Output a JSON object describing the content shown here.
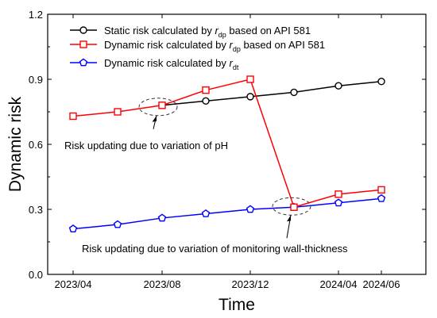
{
  "chart_data": {
    "type": "line",
    "xlabel": "Time",
    "ylabel": "Dynamic risk",
    "x_tick_labels": [
      "2023/04",
      "2023/08",
      "2023/12",
      "2024/04",
      "2024/06"
    ],
    "x_tick_indices": [
      0,
      2,
      4,
      6,
      7
    ],
    "y_ticks": [
      "0.0",
      "0.3",
      "0.6",
      "0.9",
      "1.2"
    ],
    "ylim": [
      0,
      1.2
    ],
    "grid": false,
    "legend_position": "top-left",
    "x": [
      "2023/04",
      "2023/06",
      "2023/08",
      "2023/10",
      "2023/12",
      "2024/02",
      "2024/04",
      "2024/06"
    ],
    "series": [
      {
        "name_prefix": "Static risk calculated by ",
        "name_symbol": "r",
        "name_subscript": "dp",
        "name_suffix": " based on API 581",
        "color": "#000000",
        "marker": "circle",
        "x": [
          "2023/08",
          "2023/10",
          "2023/12",
          "2024/02",
          "2024/04",
          "2024/06"
        ],
        "values": [
          0.78,
          0.8,
          0.82,
          0.84,
          0.87,
          0.89
        ]
      },
      {
        "name_prefix": "Dynamic risk calculated by ",
        "name_symbol": "r",
        "name_subscript": "dp",
        "name_suffix": " based on API 581",
        "color": "#ff0000",
        "marker": "square",
        "x": [
          "2023/04",
          "2023/06",
          "2023/08",
          "2023/10",
          "2023/12",
          "2024/02",
          "2024/04",
          "2024/06"
        ],
        "values": [
          0.73,
          0.75,
          0.78,
          0.85,
          0.9,
          0.31,
          0.37,
          0.39
        ]
      },
      {
        "name_prefix": "Dynamic risk calculated by ",
        "name_symbol": "r",
        "name_subscript": "dt",
        "name_suffix": "",
        "color": "#0000ff",
        "marker": "pentagon",
        "x": [
          "2023/04",
          "2023/06",
          "2023/08",
          "2023/10",
          "2023/12",
          "2024/02",
          "2024/04",
          "2024/06"
        ],
        "values": [
          0.21,
          0.23,
          0.26,
          0.28,
          0.3,
          0.31,
          0.33,
          0.35
        ]
      }
    ],
    "annotations": [
      {
        "text": "Risk updating due to variation of pH",
        "x": "2023/08",
        "y": 0.78
      },
      {
        "text": "Risk updating due to variation of monitoring wall-thickness",
        "x": "2024/02",
        "y": 0.31
      }
    ]
  }
}
